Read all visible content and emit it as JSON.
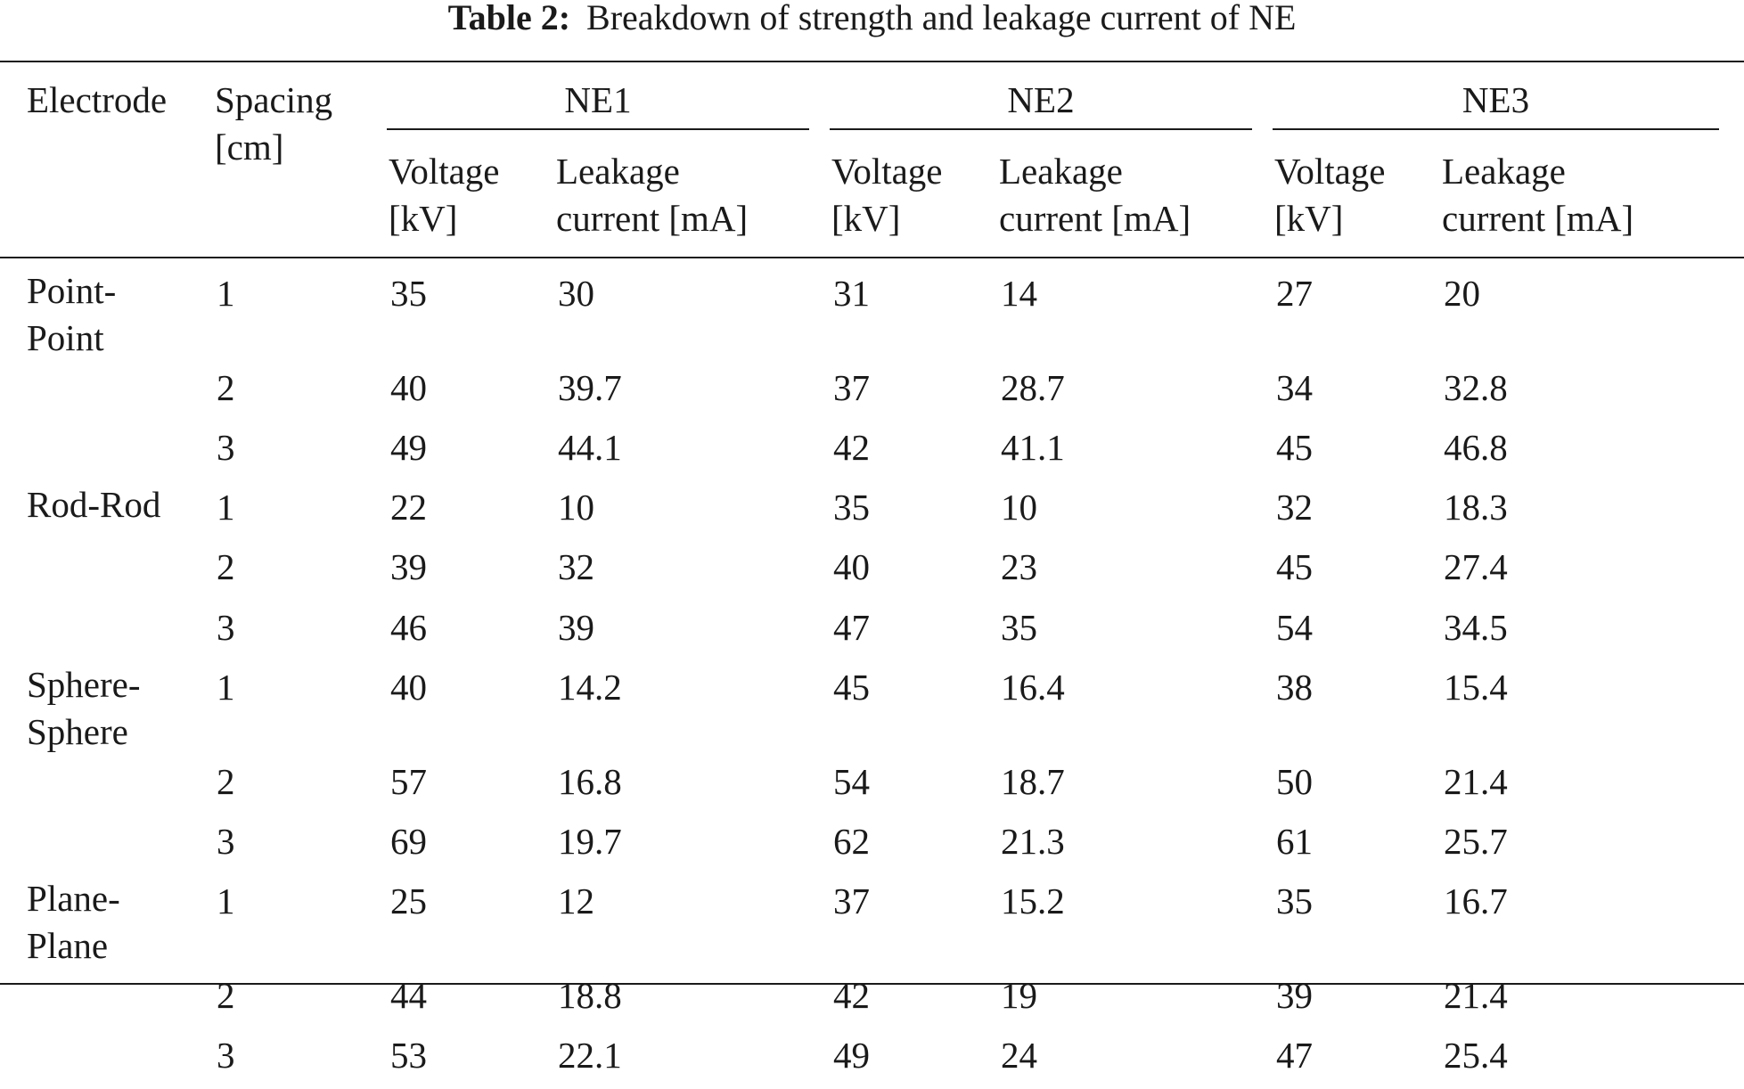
{
  "caption": {
    "label": "Table 2:",
    "text": "Breakdown of strength and leakage current of NE"
  },
  "header": {
    "electrode": "Electrode",
    "spacing_line1": "Spacing",
    "spacing_line2": "[cm]",
    "groups": [
      "NE1",
      "NE2",
      "NE3"
    ],
    "voltage_line1": "Voltage",
    "voltage_line2": "[kV]",
    "leakage_line1": "Leakage",
    "leakage_line2": "current [mA]"
  },
  "rows": [
    {
      "electrode_l1": "Point-",
      "electrode_l2": "Point",
      "spacing": "1",
      "ne1_v": "35",
      "ne1_i": "30",
      "ne2_v": "31",
      "ne2_i": "14",
      "ne3_v": "27",
      "ne3_i": "20"
    },
    {
      "electrode_l1": "",
      "electrode_l2": "",
      "spacing": "2",
      "ne1_v": "40",
      "ne1_i": "39.7",
      "ne2_v": "37",
      "ne2_i": "28.7",
      "ne3_v": "34",
      "ne3_i": "32.8"
    },
    {
      "electrode_l1": "",
      "electrode_l2": "",
      "spacing": "3",
      "ne1_v": "49",
      "ne1_i": "44.1",
      "ne2_v": "42",
      "ne2_i": "41.1",
      "ne3_v": "45",
      "ne3_i": "46.8"
    },
    {
      "electrode_l1": "Rod-Rod",
      "electrode_l2": "",
      "spacing": "1",
      "ne1_v": "22",
      "ne1_i": "10",
      "ne2_v": "35",
      "ne2_i": "10",
      "ne3_v": "32",
      "ne3_i": "18.3"
    },
    {
      "electrode_l1": "",
      "electrode_l2": "",
      "spacing": "2",
      "ne1_v": "39",
      "ne1_i": "32",
      "ne2_v": "40",
      "ne2_i": "23",
      "ne3_v": "45",
      "ne3_i": "27.4"
    },
    {
      "electrode_l1": "",
      "electrode_l2": "",
      "spacing": "3",
      "ne1_v": "46",
      "ne1_i": "39",
      "ne2_v": "47",
      "ne2_i": "35",
      "ne3_v": "54",
      "ne3_i": "34.5"
    },
    {
      "electrode_l1": "Sphere-",
      "electrode_l2": "Sphere",
      "spacing": "1",
      "ne1_v": "40",
      "ne1_i": "14.2",
      "ne2_v": "45",
      "ne2_i": "16.4",
      "ne3_v": "38",
      "ne3_i": "15.4"
    },
    {
      "electrode_l1": "",
      "electrode_l2": "",
      "spacing": "2",
      "ne1_v": "57",
      "ne1_i": "16.8",
      "ne2_v": "54",
      "ne2_i": "18.7",
      "ne3_v": "50",
      "ne3_i": "21.4"
    },
    {
      "electrode_l1": "",
      "electrode_l2": "",
      "spacing": "3",
      "ne1_v": "69",
      "ne1_i": "19.7",
      "ne2_v": "62",
      "ne2_i": "21.3",
      "ne3_v": "61",
      "ne3_i": "25.7"
    },
    {
      "electrode_l1": "Plane-",
      "electrode_l2": "Plane",
      "spacing": "1",
      "ne1_v": "25",
      "ne1_i": "12",
      "ne2_v": "37",
      "ne2_i": "15.2",
      "ne3_v": "35",
      "ne3_i": "16.7"
    },
    {
      "electrode_l1": "",
      "electrode_l2": "",
      "spacing": "2",
      "ne1_v": "44",
      "ne1_i": "18.8",
      "ne2_v": "42",
      "ne2_i": "19",
      "ne3_v": "39",
      "ne3_i": "21.4"
    },
    {
      "electrode_l1": "",
      "electrode_l2": "",
      "spacing": "3",
      "ne1_v": "53",
      "ne1_i": "22.1",
      "ne2_v": "49",
      "ne2_i": "24",
      "ne3_v": "47",
      "ne3_i": "25.4"
    }
  ]
}
